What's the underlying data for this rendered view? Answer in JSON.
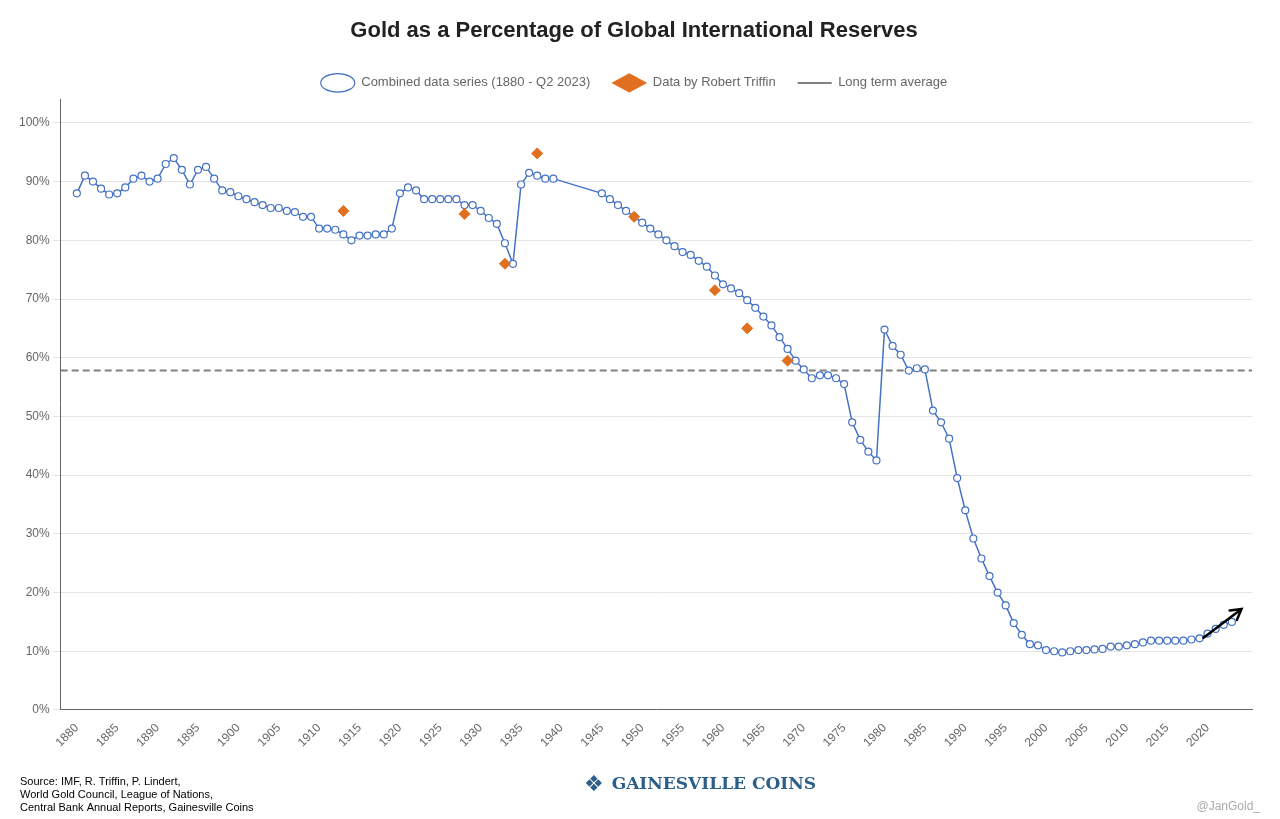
{
  "chart_data": {
    "type": "line",
    "title": "Gold as a Percentage of Global International Reserves",
    "series": [
      {
        "name": "Combined data series (1880 - Q2 2023)",
        "type": "line",
        "color": "#4472C4",
        "marker": "circle",
        "line_style": "solid",
        "x": [
          1880,
          1881,
          1882,
          1883,
          1884,
          1885,
          1886,
          1887,
          1888,
          1889,
          1890,
          1891,
          1892,
          1893,
          1894,
          1895,
          1896,
          1897,
          1898,
          1899,
          1900,
          1901,
          1902,
          1903,
          1904,
          1905,
          1906,
          1907,
          1908,
          1909,
          1910,
          1911,
          1912,
          1913,
          1914,
          1915,
          1916,
          1917,
          1918,
          1919,
          1920,
          1921,
          1922,
          1923,
          1924,
          1925,
          1926,
          1927,
          1928,
          1929,
          1930,
          1931,
          1932,
          1933,
          1934,
          1935,
          1936,
          1937,
          1938,
          1939,
          1945,
          1946,
          1947,
          1948,
          1949,
          1950,
          1951,
          1952,
          1953,
          1954,
          1955,
          1956,
          1957,
          1958,
          1959,
          1960,
          1961,
          1962,
          1963,
          1964,
          1965,
          1966,
          1967,
          1968,
          1969,
          1970,
          1971,
          1972,
          1973,
          1974,
          1975,
          1976,
          1977,
          1978,
          1979,
          1980,
          1981,
          1982,
          1983,
          1984,
          1985,
          1986,
          1987,
          1988,
          1989,
          1990,
          1991,
          1992,
          1993,
          1994,
          1995,
          1996,
          1997,
          1998,
          1999,
          2000,
          2001,
          2002,
          2003,
          2004,
          2005,
          2006,
          2007,
          2008,
          2009,
          2010,
          2011,
          2012,
          2013,
          2014,
          2015,
          2016,
          2017,
          2018,
          2019,
          2020,
          2021,
          2022,
          2023
        ],
        "values": [
          0.88,
          0.91,
          0.9,
          0.888,
          0.878,
          0.88,
          0.89,
          0.905,
          0.91,
          0.9,
          0.905,
          0.93,
          0.94,
          0.92,
          0.895,
          0.92,
          0.925,
          0.905,
          0.885,
          0.882,
          0.875,
          0.87,
          0.865,
          0.86,
          0.855,
          0.855,
          0.85,
          0.848,
          0.84,
          0.84,
          0.82,
          0.82,
          0.818,
          0.81,
          0.8,
          0.808,
          0.808,
          0.81,
          0.81,
          0.82,
          0.88,
          0.89,
          0.885,
          0.87,
          0.87,
          0.87,
          0.87,
          0.87,
          0.86,
          0.86,
          0.85,
          0.838,
          0.828,
          0.795,
          0.76,
          0.895,
          0.915,
          0.91,
          0.905,
          0.905,
          0.88,
          0.87,
          0.86,
          0.85,
          0.84,
          0.83,
          0.82,
          0.81,
          0.8,
          0.79,
          0.78,
          0.775,
          0.765,
          0.755,
          0.74,
          0.725,
          0.718,
          0.71,
          0.698,
          0.685,
          0.67,
          0.655,
          0.635,
          0.615,
          0.595,
          0.58,
          0.565,
          0.57,
          0.57,
          0.565,
          0.555,
          0.49,
          0.46,
          0.44,
          0.425,
          0.648,
          0.62,
          0.605,
          0.578,
          0.582,
          0.58,
          0.51,
          0.49,
          0.462,
          0.395,
          0.34,
          0.292,
          0.258,
          0.228,
          0.2,
          0.178,
          0.148,
          0.128,
          0.112,
          0.11,
          0.102,
          0.1,
          0.098,
          0.1,
          0.102,
          0.102,
          0.103,
          0.104,
          0.108,
          0.108,
          0.11,
          0.112,
          0.115,
          0.118,
          0.118,
          0.118,
          0.118,
          0.118,
          0.12,
          0.122,
          0.13,
          0.138,
          0.145,
          0.15
        ]
      },
      {
        "name": "Data by Robert Triffin",
        "type": "scatter",
        "color": "#E07020",
        "marker": "diamond",
        "x": [
          1913,
          1928,
          1933,
          1937,
          1949,
          1959,
          1963,
          1968
        ],
        "values": [
          0.85,
          0.845,
          0.76,
          0.948,
          0.84,
          0.715,
          0.65,
          0.595
        ]
      },
      {
        "name": "Long term average",
        "type": "hline",
        "color": "#808080",
        "line_style": "dashed",
        "values": [
          0.578
        ]
      }
    ],
    "xlim": [
      1878,
      2025.5
    ],
    "xticks": [
      1880,
      1885,
      1890,
      1895,
      1900,
      1905,
      1910,
      1915,
      1920,
      1925,
      1930,
      1935,
      1940,
      1945,
      1950,
      1955,
      1960,
      1965,
      1970,
      1975,
      1980,
      1985,
      1990,
      1995,
      2000,
      2005,
      2010,
      2015,
      2020
    ],
    "ylim": [
      0.0,
      1.04
    ],
    "yticks": [
      {
        "value": 0.0,
        "label": "0%"
      },
      {
        "value": 0.1,
        "label": "10%"
      },
      {
        "value": 0.2,
        "label": "20%"
      },
      {
        "value": 0.3,
        "label": "30%"
      },
      {
        "value": 0.4,
        "label": "40%"
      },
      {
        "value": 0.5,
        "label": "50%"
      },
      {
        "value": 0.6,
        "label": "60%"
      },
      {
        "value": 0.7,
        "label": "70%"
      },
      {
        "value": 0.8,
        "label": "80%"
      },
      {
        "value": 0.9,
        "label": "90%"
      },
      {
        "value": 1.0,
        "label": "100%"
      }
    ],
    "grid": "y",
    "legend": "top",
    "annotations": [
      {
        "type": "arrow",
        "color": "#000000",
        "start": [
          2019.5,
          0.123
        ],
        "end": [
          2024.2,
          0.172
        ]
      },
      {
        "text": "Source: IMF, R. Triffin, P. Lindert,\nWorld Gold Council, League of Nations,\nCentral Bank Annual Reports, Gainesville Coins",
        "color": "#000000"
      },
      {
        "text": "@JanGold_",
        "color": "#AAAAAA"
      },
      {
        "text": "❖",
        "color": "#2B5F8A"
      },
      {
        "text": "GAINESVILLE COINS",
        "color": "#2B5F8A"
      }
    ]
  }
}
